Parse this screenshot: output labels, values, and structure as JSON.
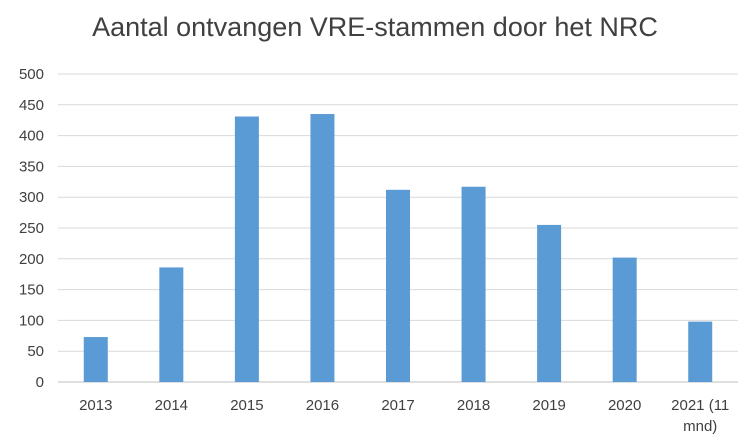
{
  "chart_data": {
    "type": "bar",
    "title": "Aantal ontvangen VRE-stammen door het NRC",
    "xlabel": "",
    "ylabel": "",
    "categories": [
      "2013",
      "2014",
      "2015",
      "2016",
      "2017",
      "2018",
      "2019",
      "2020",
      "2021 (11 mnd)"
    ],
    "category_lines": [
      [
        "2013"
      ],
      [
        "2014"
      ],
      [
        "2015"
      ],
      [
        "2016"
      ],
      [
        "2017"
      ],
      [
        "2018"
      ],
      [
        "2019"
      ],
      [
        "2020"
      ],
      [
        "2021 (11",
        "mnd)"
      ]
    ],
    "values": [
      73,
      186,
      431,
      435,
      312,
      317,
      255,
      202,
      98
    ],
    "ylim": [
      0,
      500
    ],
    "yticks": [
      0,
      50,
      100,
      150,
      200,
      250,
      300,
      350,
      400,
      450,
      500
    ],
    "grid": true,
    "legend": "none",
    "colors": {
      "bar": "#5b9bd5",
      "grid": "#d9d9d9",
      "text": "#404040",
      "axis": "#bfbfbf"
    }
  }
}
